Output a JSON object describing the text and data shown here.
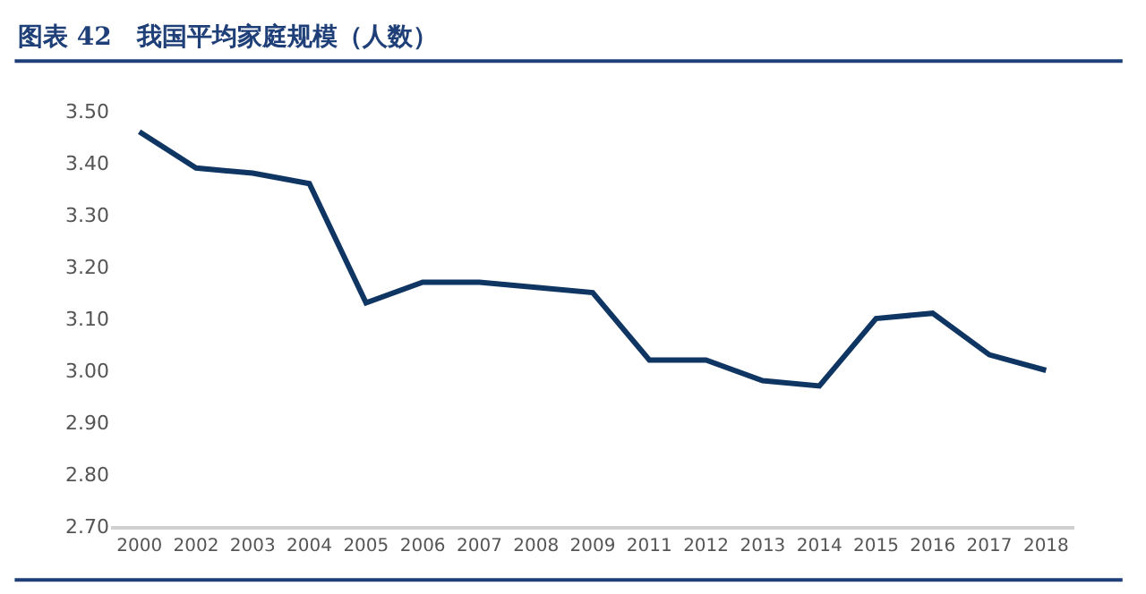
{
  "chart_data": {
    "type": "line",
    "title": "图表 42　我国平均家庭规模（人数）",
    "categories": [
      "2000",
      "2002",
      "2003",
      "2004",
      "2005",
      "2006",
      "2007",
      "2008",
      "2009",
      "2011",
      "2012",
      "2013",
      "2014",
      "2015",
      "2016",
      "2017",
      "2018"
    ],
    "series": [
      {
        "color": "#0f3563",
        "values": [
          3.46,
          3.39,
          3.38,
          3.36,
          3.13,
          3.17,
          3.17,
          3.16,
          3.15,
          3.02,
          3.02,
          2.98,
          2.97,
          3.1,
          3.11,
          3.03,
          3.0
        ]
      }
    ],
    "ylim": [
      2.7,
      3.5
    ],
    "yticks": [
      {
        "value": 2.7,
        "label": "2.70"
      },
      {
        "value": 2.8,
        "label": "2.80"
      },
      {
        "value": 2.9,
        "label": "2.90"
      },
      {
        "value": 3.0,
        "label": "3.00"
      },
      {
        "value": 3.1,
        "label": "3.10"
      },
      {
        "value": 3.2,
        "label": "3.20"
      },
      {
        "value": 3.3,
        "label": "3.30"
      },
      {
        "value": 3.4,
        "label": "3.40"
      },
      {
        "value": 3.5,
        "label": "3.50"
      }
    ],
    "marker": "none",
    "line_style": "solid"
  }
}
